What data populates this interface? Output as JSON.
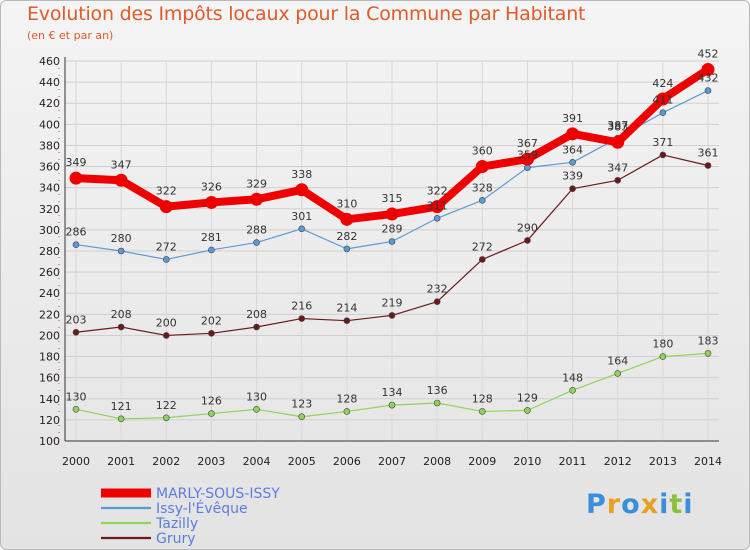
{
  "header": {
    "title": "Evolution des Impôts locaux pour la Commune par Habitant",
    "subtitle": "(en € et par an)"
  },
  "logo": {
    "text": "Proxiti",
    "letters": [
      "P",
      "r",
      "o",
      "x",
      "i",
      "t",
      "i"
    ],
    "colors": [
      "#3a8fd8",
      "#e8a020",
      "#3a8fd8",
      "#e8a020",
      "#3a8fd8",
      "#8bbf3c",
      "#3a8fd8"
    ]
  },
  "chart_data": {
    "type": "line",
    "categories": [
      "2000",
      "2001",
      "2002",
      "2003",
      "2004",
      "2005",
      "2006",
      "2007",
      "2008",
      "2009",
      "2010",
      "2011",
      "2012",
      "2013",
      "2014"
    ],
    "ylim": [
      100,
      460
    ],
    "yticks": [
      100,
      120,
      140,
      160,
      180,
      200,
      220,
      240,
      260,
      280,
      300,
      320,
      340,
      360,
      380,
      400,
      420,
      440,
      460
    ],
    "grid": true,
    "legend_position": "bottom-left",
    "xlabel": "",
    "ylabel": "",
    "series": [
      {
        "name": "MARLY-SOUS-ISSY",
        "color": "#ee0000",
        "values": [
          349,
          347,
          322,
          326,
          329,
          338,
          310,
          315,
          322,
          360,
          367,
          391,
          383,
          424,
          452
        ]
      },
      {
        "name": "Issy-l'Évêque",
        "color": "#5b9bd5",
        "values": [
          286,
          280,
          272,
          281,
          288,
          301,
          282,
          289,
          311,
          328,
          359,
          364,
          387,
          411,
          432
        ]
      },
      {
        "name": "Tazilly",
        "color": "#8fd45a",
        "values": [
          130,
          121,
          122,
          126,
          130,
          123,
          128,
          134,
          136,
          128,
          129,
          148,
          164,
          180,
          183
        ]
      },
      {
        "name": "Grury",
        "color": "#6b1a1a",
        "values": [
          203,
          208,
          200,
          202,
          208,
          216,
          214,
          219,
          232,
          272,
          290,
          339,
          347,
          371,
          361
        ]
      }
    ]
  }
}
